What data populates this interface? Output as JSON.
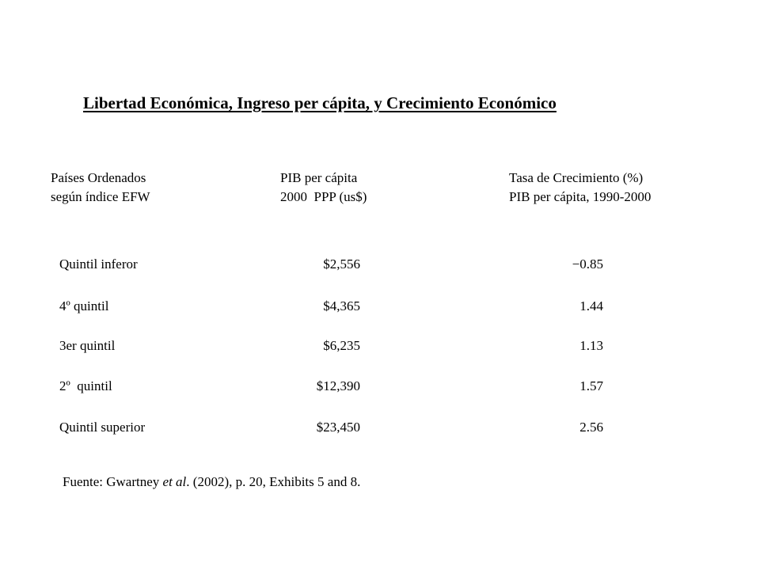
{
  "title": "Libertad Económica, Ingreso per cápita, y Crecimiento Económico",
  "headers": {
    "col1": [
      "Países Ordenados",
      "según índice EFW"
    ],
    "col2": [
      "PIB per cápita",
      "2000  PPP (us$)"
    ],
    "col3": [
      "Tasa de Crecimiento (%)",
      "PIB per cápita, 1990-2000"
    ]
  },
  "rows": [
    {
      "label": "Quintil inferor",
      "pib": "$2,556",
      "growth": "−0.85"
    },
    {
      "label": "4º quintil",
      "pib": "$4,365",
      "growth": "1.44"
    },
    {
      "label": "3er quintil",
      "pib": "$6,235",
      "growth": "1.13"
    },
    {
      "label": "2º  quintil",
      "pib": "$12,390",
      "growth": "1.57"
    },
    {
      "label": "Quintil superior",
      "pib": "$23,450",
      "growth": "2.56"
    }
  ],
  "source": {
    "prefix": "Fuente: Gwartney ",
    "italic": "et al",
    "suffix": ". (2002), p. 20, Exhibits 5 and 8."
  }
}
